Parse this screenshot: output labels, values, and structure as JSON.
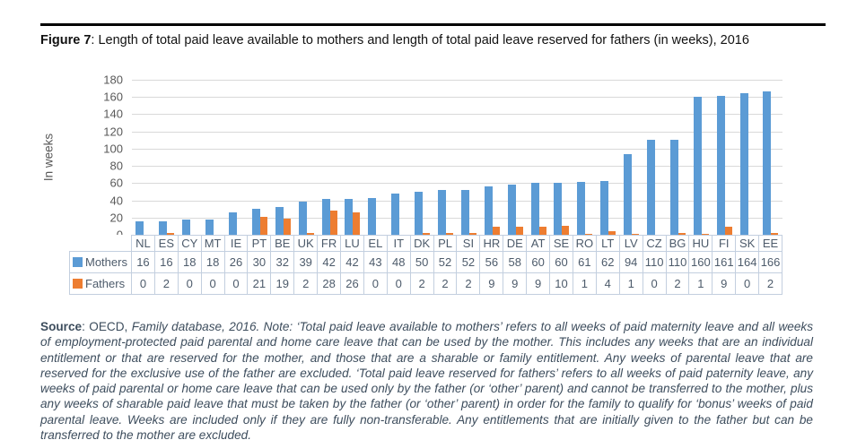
{
  "figure": {
    "label": "Figure 7",
    "title_rest": ": Length of total paid leave available to mothers and length of total paid leave reserved for fathers (in weeks), 2016"
  },
  "chart_data": {
    "type": "bar",
    "title": "",
    "xlabel": "",
    "ylabel": "In weeks",
    "ylim": [
      0,
      180
    ],
    "ytick_step": 20,
    "yticks": [
      0,
      20,
      40,
      60,
      80,
      100,
      120,
      140,
      160,
      180
    ],
    "grid": true,
    "gridline_color": "#d9d9d9",
    "legend_position": "data-table-left",
    "categories": [
      "NL",
      "ES",
      "CY",
      "MT",
      "IE",
      "PT",
      "BE",
      "UK",
      "FR",
      "LU",
      "EL",
      "IT",
      "DK",
      "PL",
      "SI",
      "HR",
      "DE",
      "AT",
      "SE",
      "RO",
      "LT",
      "LV",
      "CZ",
      "BG",
      "HU",
      "FI",
      "SK",
      "EE"
    ],
    "series": [
      {
        "name": "Mothers",
        "color": "#5B9BD5",
        "values": [
          16,
          16,
          18,
          18,
          26,
          30,
          32,
          39,
          42,
          42,
          43,
          48,
          50,
          52,
          52,
          56,
          58,
          60,
          60,
          61,
          62,
          94,
          110,
          110,
          160,
          161,
          164,
          166
        ]
      },
      {
        "name": "Fathers",
        "color": "#ED7D31",
        "values": [
          0,
          2,
          0,
          0,
          0,
          21,
          19,
          2,
          28,
          26,
          0,
          0,
          2,
          2,
          2,
          9,
          9,
          9,
          10,
          1,
          4,
          1,
          0,
          2,
          1,
          9,
          0,
          2
        ]
      }
    ]
  },
  "note": {
    "source_label": "Source",
    "source_plain": ": OECD, ",
    "body": "Family database, 2016. Note: ‘Total paid leave available to mothers’ refers to all weeks of paid maternity leave and all weeks of employment-protected paid parental and home care leave that can be used by the mother. This includes any weeks that are an individual entitlement or that are reserved for the mother, and those that are a sharable or family entitlement. Any weeks of parental leave that are reserved for the exclusive use of the father are excluded. ‘Total paid leave reserved for fathers’ refers to all weeks of paid paternity leave, any weeks of paid parental or home care leave that can be used only by the father (or ‘other’ parent) and cannot be transferred to the mother, plus any weeks of sharable paid leave that must be taken by the father (or ‘other’ parent) in order for the family to qualify for ‘bonus’ weeks of paid parental leave. Weeks are included only if they are fully non-transferable. Any entitlements that are initially given to the father but can be transferred to the mother are excluded."
  }
}
